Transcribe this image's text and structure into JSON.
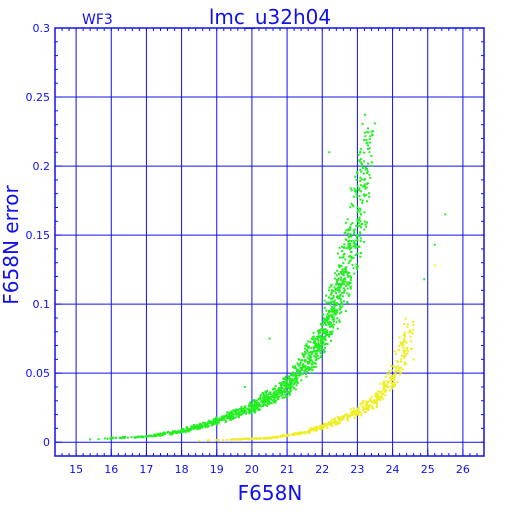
{
  "chart_data": {
    "type": "scatter",
    "title": "lmc_u32h04",
    "corner_label": "WF3",
    "xlabel": "F658N",
    "ylabel": "F658N error",
    "xlim": [
      14.4,
      26.6
    ],
    "ylim": [
      -0.01,
      0.3
    ],
    "xticks": [
      15,
      16,
      17,
      18,
      19,
      20,
      21,
      22,
      23,
      24,
      25,
      26
    ],
    "yticks": [
      0,
      0.05,
      0.1,
      0.15,
      0.2,
      0.25,
      0.3
    ],
    "ytick_labels": [
      "0",
      "0.05",
      "0.1",
      "0.15",
      "0.2",
      "0.25",
      "0.3"
    ],
    "grid": true,
    "colors": {
      "axes": "#1010ee",
      "series_green": "#22ee22",
      "series_yellow": "#eeee22"
    },
    "series": [
      {
        "color": "green",
        "curve_points": [
          {
            "x": 15.4,
            "y": 0.002
          },
          {
            "x": 16.0,
            "y": 0.003
          },
          {
            "x": 17.0,
            "y": 0.004
          },
          {
            "x": 18.0,
            "y": 0.008
          },
          {
            "x": 19.0,
            "y": 0.015
          },
          {
            "x": 20.0,
            "y": 0.025
          },
          {
            "x": 21.0,
            "y": 0.04
          },
          {
            "x": 21.5,
            "y": 0.055
          },
          {
            "x": 22.0,
            "y": 0.075
          },
          {
            "x": 22.5,
            "y": 0.11
          },
          {
            "x": 23.0,
            "y": 0.16
          },
          {
            "x": 23.3,
            "y": 0.215
          }
        ],
        "outliers": [
          {
            "x": 25.5,
            "y": 0.165
          },
          {
            "x": 25.2,
            "y": 0.143
          },
          {
            "x": 24.9,
            "y": 0.118
          },
          {
            "x": 22.2,
            "y": 0.21
          },
          {
            "x": 20.5,
            "y": 0.075
          },
          {
            "x": 19.8,
            "y": 0.04
          }
        ]
      },
      {
        "color": "yellow",
        "curve_points": [
          {
            "x": 18.5,
            "y": 0.001
          },
          {
            "x": 19.5,
            "y": 0.002
          },
          {
            "x": 20.5,
            "y": 0.003
          },
          {
            "x": 21.0,
            "y": 0.005
          },
          {
            "x": 21.5,
            "y": 0.007
          },
          {
            "x": 22.0,
            "y": 0.011
          },
          {
            "x": 22.5,
            "y": 0.016
          },
          {
            "x": 23.0,
            "y": 0.022
          },
          {
            "x": 23.5,
            "y": 0.03
          },
          {
            "x": 24.0,
            "y": 0.045
          },
          {
            "x": 24.5,
            "y": 0.08
          }
        ],
        "outliers": [
          {
            "x": 25.2,
            "y": 0.128
          },
          {
            "x": 24.3,
            "y": 0.072
          },
          {
            "x": 24.6,
            "y": 0.06
          }
        ]
      }
    ]
  }
}
